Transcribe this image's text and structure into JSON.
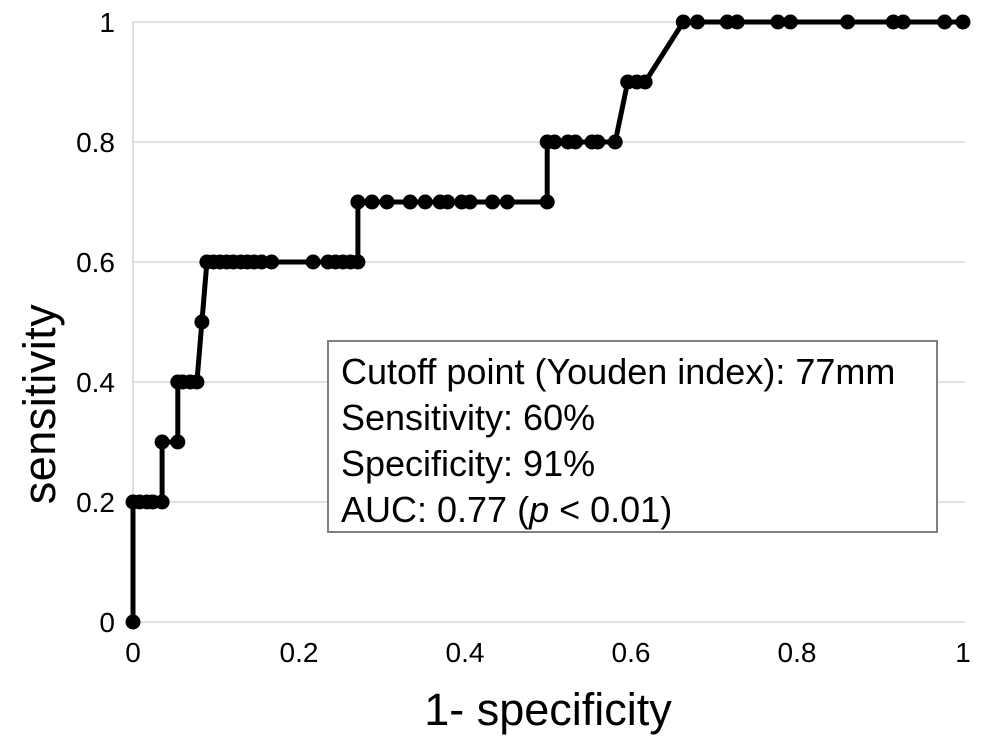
{
  "chart_data": {
    "type": "line",
    "subtype": "roc-curve",
    "title": "",
    "xlabel": "1- specificity",
    "ylabel": "sensitivity",
    "xlim": [
      0,
      1
    ],
    "ylim": [
      0,
      1
    ],
    "grid": "horizontal",
    "legend": "none",
    "xticks": {
      "values": [
        0,
        0.2,
        0.4,
        0.6,
        0.8,
        1
      ],
      "labels": [
        "0",
        "0.2",
        "0.4",
        "0.6",
        "0.8",
        "1"
      ]
    },
    "yticks": {
      "values": [
        0,
        0.2,
        0.4,
        0.6,
        0.8,
        1
      ],
      "labels": [
        "0",
        "0.2",
        "0.4",
        "0.6",
        "0.8",
        "1"
      ]
    },
    "colors": {
      "curve": "#000000",
      "marker": "#000000",
      "grid": "#d9d9d9",
      "axis_line": "#d0d0d0",
      "annotation_border": "#808080",
      "background": "#ffffff"
    },
    "series": [
      {
        "name": "ROC curve",
        "marker": "circle",
        "points": [
          [
            0,
            0
          ],
          [
            0,
            0.2
          ],
          [
            0.008,
            0.2
          ],
          [
            0.017,
            0.2
          ],
          [
            0.024,
            0.2
          ],
          [
            0.035,
            0.2
          ],
          [
            0.035,
            0.3
          ],
          [
            0.054,
            0.3
          ],
          [
            0.054,
            0.4
          ],
          [
            0.06,
            0.4
          ],
          [
            0.069,
            0.4
          ],
          [
            0.077,
            0.4
          ],
          [
            0.083,
            0.5
          ],
          [
            0.089,
            0.6
          ],
          [
            0.097,
            0.6
          ],
          [
            0.105,
            0.6
          ],
          [
            0.113,
            0.6
          ],
          [
            0.121,
            0.6
          ],
          [
            0.13,
            0.6
          ],
          [
            0.138,
            0.6
          ],
          [
            0.146,
            0.6
          ],
          [
            0.155,
            0.6
          ],
          [
            0.167,
            0.6
          ],
          [
            0.217,
            0.6
          ],
          [
            0.235,
            0.6
          ],
          [
            0.244,
            0.6
          ],
          [
            0.253,
            0.6
          ],
          [
            0.262,
            0.6
          ],
          [
            0.271,
            0.6
          ],
          [
            0.271,
            0.7
          ],
          [
            0.288,
            0.7
          ],
          [
            0.306,
            0.7
          ],
          [
            0.334,
            0.7
          ],
          [
            0.352,
            0.7
          ],
          [
            0.37,
            0.7
          ],
          [
            0.379,
            0.7
          ],
          [
            0.396,
            0.7
          ],
          [
            0.406,
            0.7
          ],
          [
            0.433,
            0.7
          ],
          [
            0.451,
            0.7
          ],
          [
            0.499,
            0.7
          ],
          [
            0.499,
            0.8
          ],
          [
            0.508,
            0.8
          ],
          [
            0.524,
            0.8
          ],
          [
            0.533,
            0.8
          ],
          [
            0.553,
            0.8
          ],
          [
            0.56,
            0.8
          ],
          [
            0.581,
            0.8
          ],
          [
            0.596,
            0.9
          ],
          [
            0.607,
            0.9
          ],
          [
            0.617,
            0.9
          ],
          [
            0.663,
            1
          ],
          [
            0.68,
            1
          ],
          [
            0.716,
            1
          ],
          [
            0.728,
            1
          ],
          [
            0.777,
            1
          ],
          [
            0.792,
            1
          ],
          [
            0.861,
            1
          ],
          [
            0.916,
            1
          ],
          [
            0.928,
            1
          ],
          [
            0.978,
            1
          ],
          [
            1,
            1
          ]
        ]
      }
    ],
    "annotation": {
      "line1": "Cutoff point (Youden index): 77mm",
      "line2": "Sensitivity: 60%",
      "line3": "Specificity: 91%",
      "line4_parts": [
        "AUC: 0.77 (",
        "p",
        " < 0.01)"
      ],
      "cutoff_mm": 77,
      "sensitivity_pct": 60,
      "specificity_pct": 91,
      "auc": 0.77,
      "p_value": "< 0.01"
    }
  }
}
